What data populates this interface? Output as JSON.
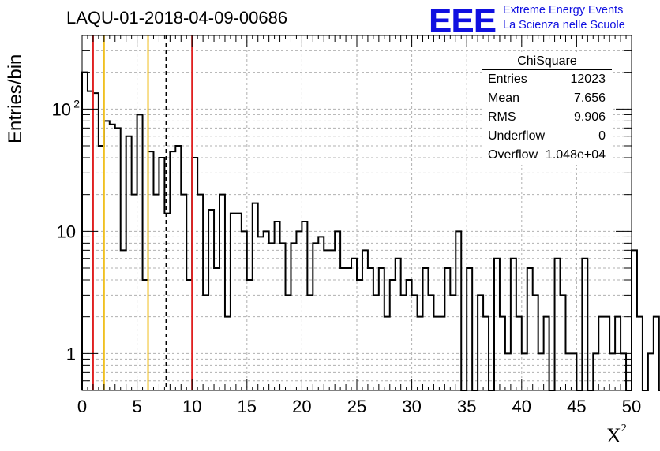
{
  "title": "LAQU-01-2018-04-09-00686",
  "logo": {
    "letters": "EEE",
    "line1": "Extreme Energy Events",
    "line2": "La Scienza nelle Scuole",
    "color": "#1010e0"
  },
  "stats": {
    "title": "ChiSquare",
    "rows": [
      {
        "key": "Entries",
        "value": "12023"
      },
      {
        "key": "Mean",
        "value": "7.656"
      },
      {
        "key": "RMS",
        "value": "9.906"
      },
      {
        "key": "Underflow",
        "value": "0"
      },
      {
        "key": "Overflow",
        "value": "1.048e+04"
      }
    ]
  },
  "chart_data": {
    "type": "histogram",
    "ylabel": "Entries/bin",
    "xlabel": "X",
    "xlabel_superscript": "2",
    "xlim": [
      0,
      50
    ],
    "ylim": [
      0.5,
      400
    ],
    "yscale": "log",
    "grid": true,
    "bin_width": 0.5,
    "xticks": [
      "0",
      "5",
      "10",
      "15",
      "20",
      "25",
      "30",
      "35",
      "40",
      "45",
      "50"
    ],
    "yticks": [
      {
        "value": 1,
        "label": "1"
      },
      {
        "value": 10,
        "label": "10"
      },
      {
        "value": 100,
        "label": "10",
        "sup": "2"
      }
    ],
    "bin_contents": [
      200,
      140,
      135,
      50,
      80,
      75,
      70,
      7,
      60,
      20,
      90,
      4,
      45,
      20,
      40,
      14,
      45,
      50,
      20,
      4,
      40,
      20,
      3,
      15,
      5,
      20,
      2,
      14,
      14,
      10,
      4,
      17,
      9,
      10,
      8,
      12,
      8,
      3,
      8,
      10,
      12,
      3,
      8,
      9,
      7,
      7,
      10,
      5,
      5,
      6,
      4,
      7,
      5,
      3,
      5,
      2,
      4,
      6,
      3,
      4,
      3,
      2,
      5,
      3,
      2,
      2,
      5,
      3,
      10,
      0,
      5,
      0,
      3,
      2,
      0,
      6,
      2,
      1,
      6,
      2,
      1,
      5,
      3,
      1,
      2,
      0,
      6,
      3,
      1,
      1,
      0,
      6,
      0,
      1,
      2,
      2,
      1,
      2,
      1,
      0,
      7,
      2,
      0,
      1,
      2,
      0
    ],
    "reference_lines": [
      {
        "x": 1,
        "color": "#e02020",
        "style": "solid"
      },
      {
        "x": 2,
        "color": "#f0c020",
        "style": "solid"
      },
      {
        "x": 6,
        "color": "#f0c020",
        "style": "solid"
      },
      {
        "x": 7.656,
        "color": "#000000",
        "style": "dashed"
      },
      {
        "x": 10,
        "color": "#e02020",
        "style": "solid"
      }
    ]
  }
}
